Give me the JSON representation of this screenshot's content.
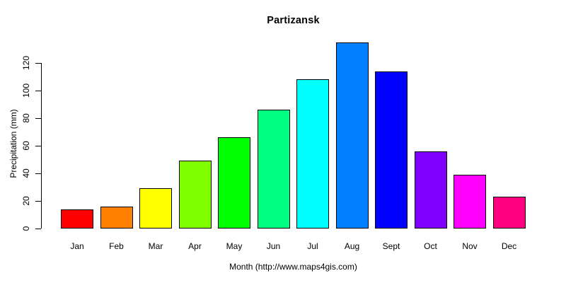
{
  "chart_data": {
    "type": "bar",
    "title": "Partizansk",
    "xlabel": "Month (http://www.maps4gis.com)",
    "ylabel": "Precipitation (mm)",
    "categories": [
      "Jan",
      "Feb",
      "Mar",
      "Apr",
      "May",
      "Jun",
      "Jul",
      "Aug",
      "Sept",
      "Oct",
      "Nov",
      "Dec"
    ],
    "values": [
      14,
      16,
      29,
      49,
      66,
      86,
      108,
      135,
      114,
      56,
      39,
      23
    ],
    "bar_colors": [
      "#FF0000",
      "#FF8000",
      "#FFFF00",
      "#80FF00",
      "#00FF00",
      "#00FF80",
      "#00FFFF",
      "#0080FF",
      "#0000FF",
      "#8000FF",
      "#FF00FF",
      "#FF0080"
    ],
    "bar_border_color": "#000000",
    "axis_color": "#000000",
    "background_color": "#FFFFFF",
    "yticks": [
      0,
      20,
      40,
      60,
      80,
      100,
      120
    ],
    "ylim": [
      0,
      140
    ],
    "grid": false,
    "legend": false
  }
}
